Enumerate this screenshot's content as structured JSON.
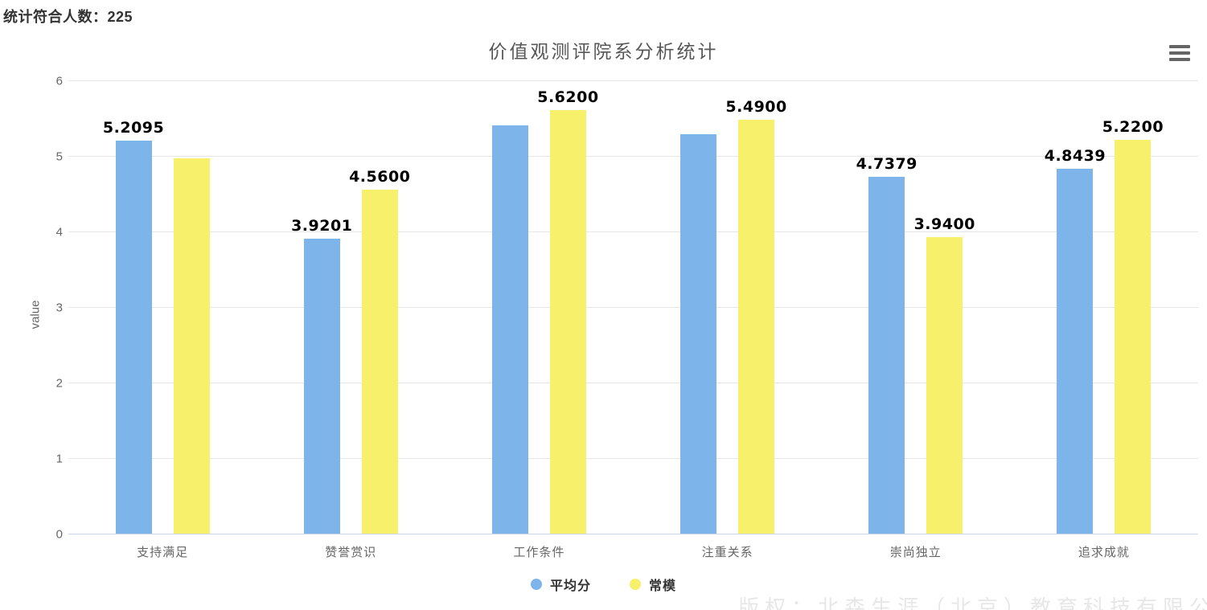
{
  "header": {
    "label": "统计符合人数：",
    "count": "225"
  },
  "chart": {
    "title": "价值观测评院系分析统计",
    "y_axis_title": "value",
    "menu_icon": "hamburger-menu-icon"
  },
  "chart_data": {
    "type": "bar",
    "title": "价值观测评院系分析统计",
    "categories": [
      "支持满足",
      "赞誉赏识",
      "工作条件",
      "注重关系",
      "崇尚独立",
      "追求成就"
    ],
    "series": [
      {
        "name": "平均分",
        "color": "#7db4ea",
        "values": [
          5.2095,
          3.9201,
          5.42,
          5.3,
          4.7379,
          4.8439
        ],
        "data_labels": [
          "5.2095",
          "3.9201",
          "",
          "",
          "4.7379",
          "4.8439"
        ]
      },
      {
        "name": "常模",
        "color": "#f6f06b",
        "values": [
          4.98,
          4.56,
          5.62,
          5.49,
          3.94,
          5.22
        ],
        "data_labels": [
          "",
          "4.5600",
          "5.6200",
          "5.4900",
          "3.9400",
          "5.2200"
        ]
      }
    ],
    "xlabel": "",
    "ylabel": "value",
    "ylim": [
      0,
      6
    ],
    "yticks": [
      0,
      1,
      2,
      3,
      4,
      5,
      6
    ],
    "grid": true,
    "legend_position": "bottom"
  },
  "legend": {
    "items": [
      {
        "label": "平均分",
        "color": "#7db4ea"
      },
      {
        "label": "常模",
        "color": "#f6f06b"
      }
    ]
  },
  "watermark": "版权：北森生涯（北京）教育科技有限公司"
}
